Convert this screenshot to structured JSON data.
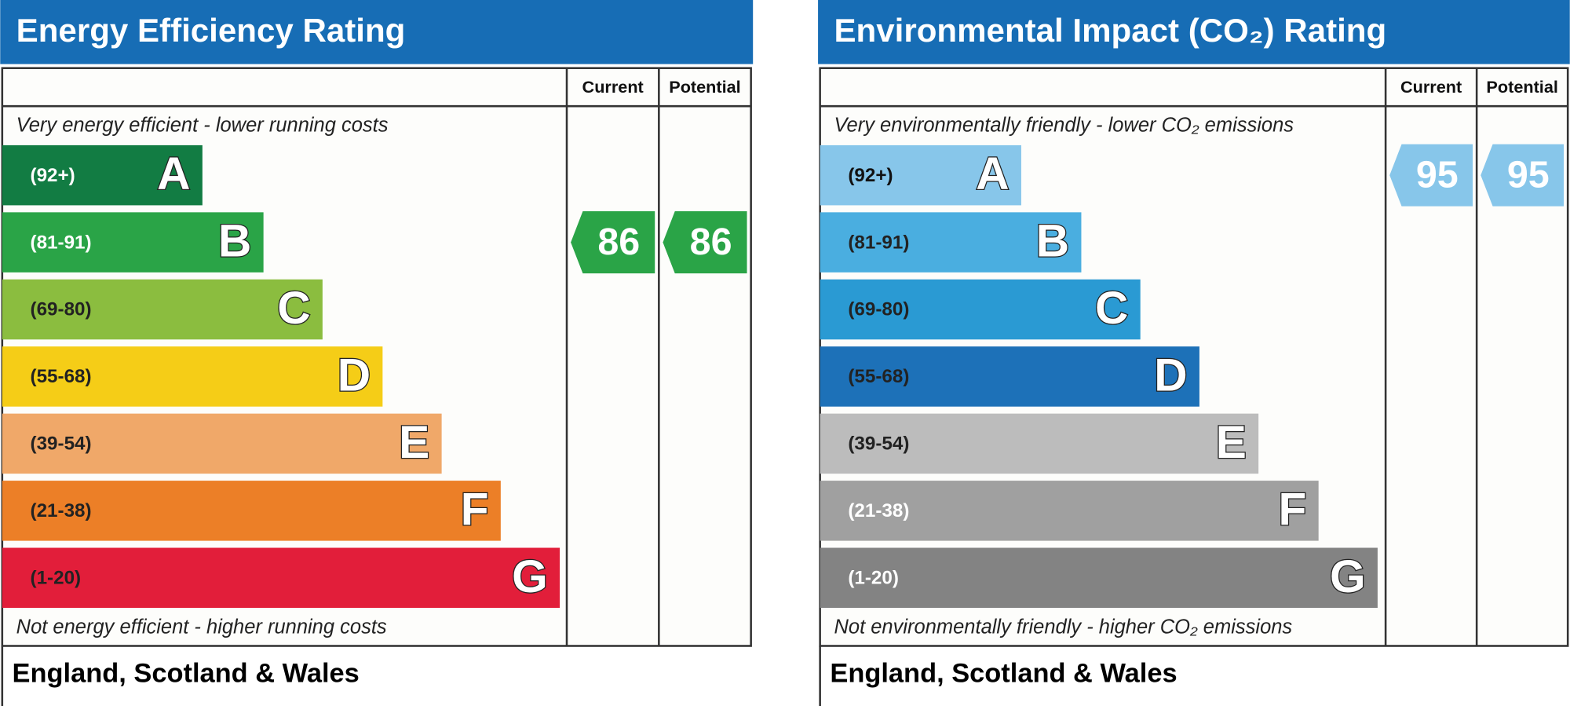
{
  "panels": [
    {
      "title": "Energy Efficiency Rating",
      "columns": [
        "Current",
        "Potential"
      ],
      "top_note": "Very energy efficient - lower running costs",
      "bottom_note": "Not energy efficient - higher running costs",
      "bands": [
        {
          "range": "(92+)",
          "letter": "A"
        },
        {
          "range": "(81-91)",
          "letter": "B"
        },
        {
          "range": "(69-80)",
          "letter": "C"
        },
        {
          "range": "(55-68)",
          "letter": "D"
        },
        {
          "range": "(39-54)",
          "letter": "E"
        },
        {
          "range": "(21-38)",
          "letter": "F"
        },
        {
          "range": "(1-20)",
          "letter": "G"
        }
      ],
      "current": 86,
      "potential": 86,
      "region": "England, Scotland & Wales"
    },
    {
      "title": "Environmental Impact (CO₂) Rating",
      "columns": [
        "Current",
        "Potential"
      ],
      "top_note": "Very environmentally friendly - lower CO₂ emissions",
      "bottom_note": "Not environmentally friendly - higher CO₂ emissions",
      "bands": [
        {
          "range": "(92+)",
          "letter": "A"
        },
        {
          "range": "(81-91)",
          "letter": "B"
        },
        {
          "range": "(69-80)",
          "letter": "C"
        },
        {
          "range": "(55-68)",
          "letter": "D"
        },
        {
          "range": "(39-54)",
          "letter": "E"
        },
        {
          "range": "(21-38)",
          "letter": "F"
        },
        {
          "range": "(1-20)",
          "letter": "G"
        }
      ],
      "current": 95,
      "potential": 95,
      "region": "England, Scotland & Wales"
    }
  ]
}
